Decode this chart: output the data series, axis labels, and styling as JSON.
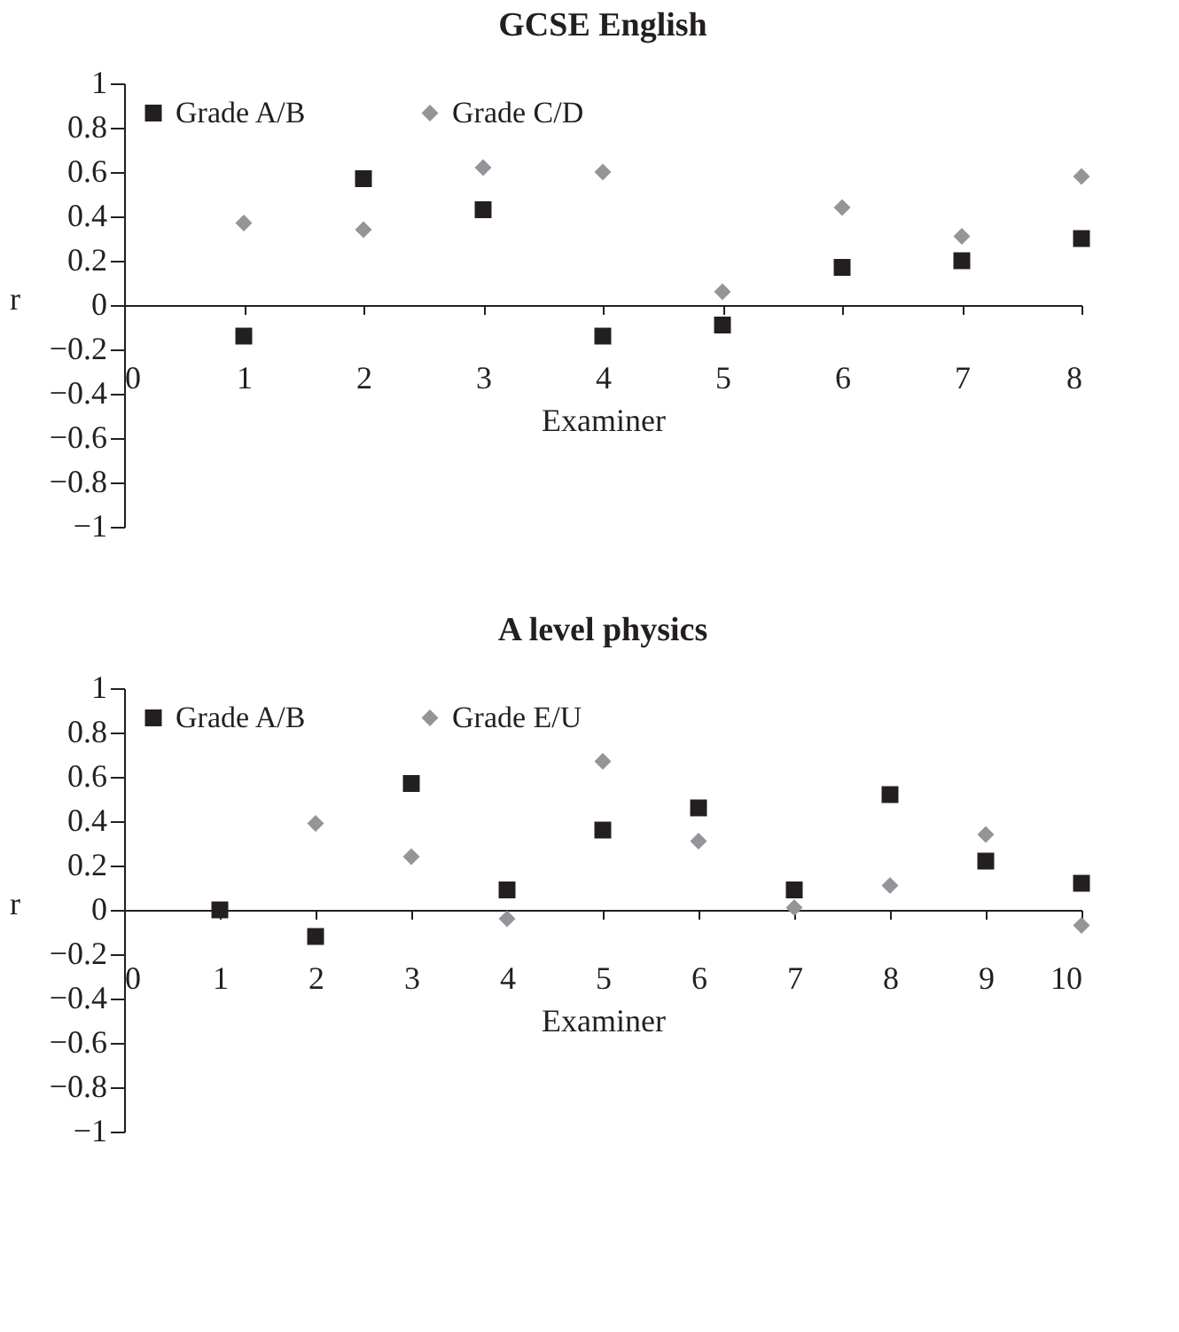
{
  "chart_data": [
    {
      "type": "scatter",
      "title": "GCSE English",
      "xlabel": "Examiner",
      "ylabel": "r",
      "x": [
        1,
        2,
        3,
        4,
        5,
        6,
        7,
        8
      ],
      "xlim": [
        0,
        8
      ],
      "xticks": [
        0,
        1,
        2,
        3,
        4,
        5,
        6,
        7,
        8
      ],
      "ylim": [
        -1,
        1
      ],
      "yticks": [
        -1,
        -0.8,
        -0.6,
        -0.4,
        -0.2,
        0,
        0.2,
        0.4,
        0.6,
        0.8,
        1
      ],
      "grid": false,
      "legend": "top left",
      "series": [
        {
          "name": "Grade A/B",
          "color": "#231f20",
          "marker": "square",
          "values": [
            -0.14,
            0.57,
            0.43,
            -0.14,
            -0.09,
            0.17,
            0.2,
            0.3
          ]
        },
        {
          "name": "Grade C/D",
          "color": "#939598",
          "marker": "diamond",
          "values": [
            0.37,
            0.34,
            0.62,
            0.6,
            0.06,
            0.44,
            0.31,
            0.58
          ]
        }
      ]
    },
    {
      "type": "scatter",
      "title": "A level physics",
      "xlabel": "Examiner",
      "ylabel": "r",
      "x": [
        1,
        2,
        3,
        4,
        5,
        6,
        7,
        8,
        9,
        10
      ],
      "xlim": [
        0,
        10
      ],
      "xticks": [
        0,
        1,
        2,
        3,
        4,
        5,
        6,
        7,
        8,
        9,
        10
      ],
      "ylim": [
        -1,
        1
      ],
      "yticks": [
        -1,
        -0.8,
        -0.6,
        -0.4,
        -0.2,
        0,
        0.2,
        0.4,
        0.6,
        0.8,
        1
      ],
      "grid": false,
      "legend": "top left",
      "series": [
        {
          "name": "Grade A/B",
          "color": "#231f20",
          "marker": "square",
          "values": [
            0.0,
            -0.12,
            0.57,
            0.09,
            0.36,
            0.46,
            0.09,
            0.52,
            0.22,
            0.12
          ]
        },
        {
          "name": "Grade E/U",
          "color": "#939598",
          "marker": "diamond",
          "values": [
            null,
            0.39,
            0.24,
            -0.04,
            0.67,
            0.31,
            0.01,
            0.11,
            0.34,
            -0.07
          ]
        }
      ]
    }
  ]
}
